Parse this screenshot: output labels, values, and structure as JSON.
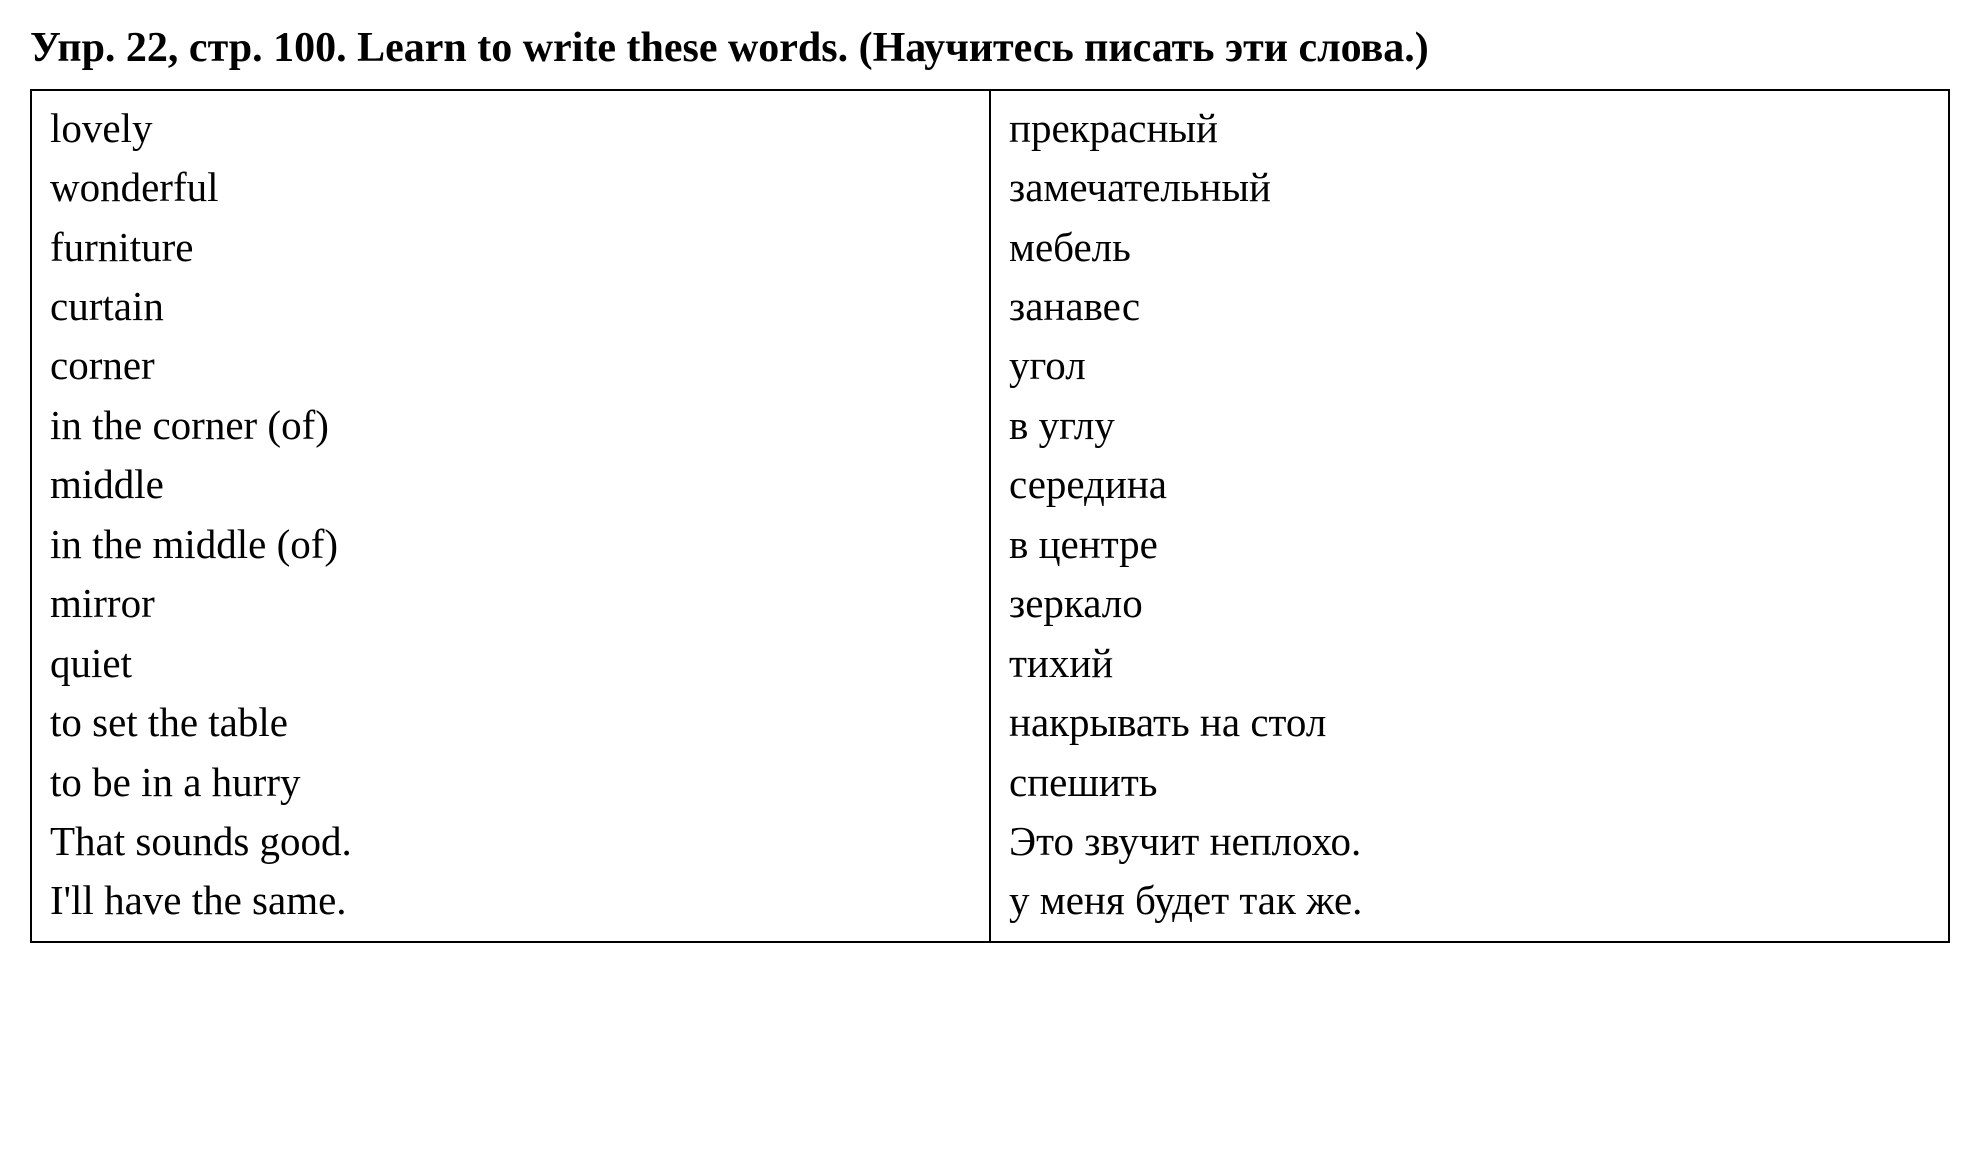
{
  "heading": {
    "ex_label": "Упр. 22, стр. 100. Learn to write these words. (Научитесь писать эти слова.)"
  },
  "vocab": {
    "left": [
      "lovely",
      "wonderful",
      "furniture",
      "curtain",
      "corner",
      "in the corner (of)",
      "middle",
      "in the middle (of)",
      "mirror",
      "quiet",
      "to set the table",
      "to be in a hurry",
      "That sounds good.",
      "I'll have the same."
    ],
    "right": [
      "прекрасный",
      "замечательный",
      "мебель",
      "занавес",
      "угол",
      "в углу",
      "середина",
      "в центре",
      "зеркало",
      "тихий",
      "накрывать на стол",
      "спешить",
      "Это звучит неплохо.",
      "у меня будет так же."
    ]
  },
  "style": {
    "background_color": "#ffffff",
    "text_color": "#000000",
    "border_color": "#000000",
    "heading_fontsize": 42,
    "cell_fontsize": 41,
    "font_family": "Times New Roman"
  }
}
